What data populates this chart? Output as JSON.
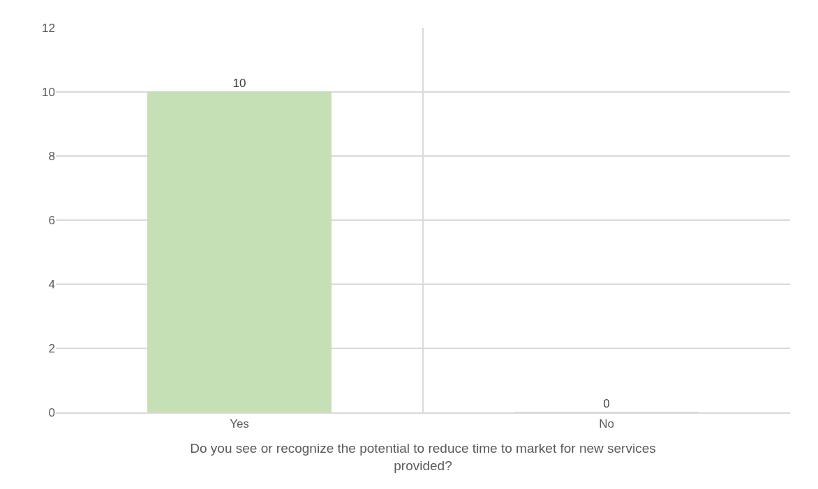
{
  "chart_data": {
    "type": "bar",
    "xlabel": "Do you see or recognize the potential to reduce time to market for new services provided?",
    "categories": [
      "Yes",
      "No"
    ],
    "values": [
      10,
      0
    ],
    "color": "#c5e0b4",
    "ylim": [
      0,
      12
    ],
    "yticks": [
      0,
      2,
      4,
      6,
      8,
      10,
      12
    ],
    "grid": true,
    "data_labels": true
  }
}
